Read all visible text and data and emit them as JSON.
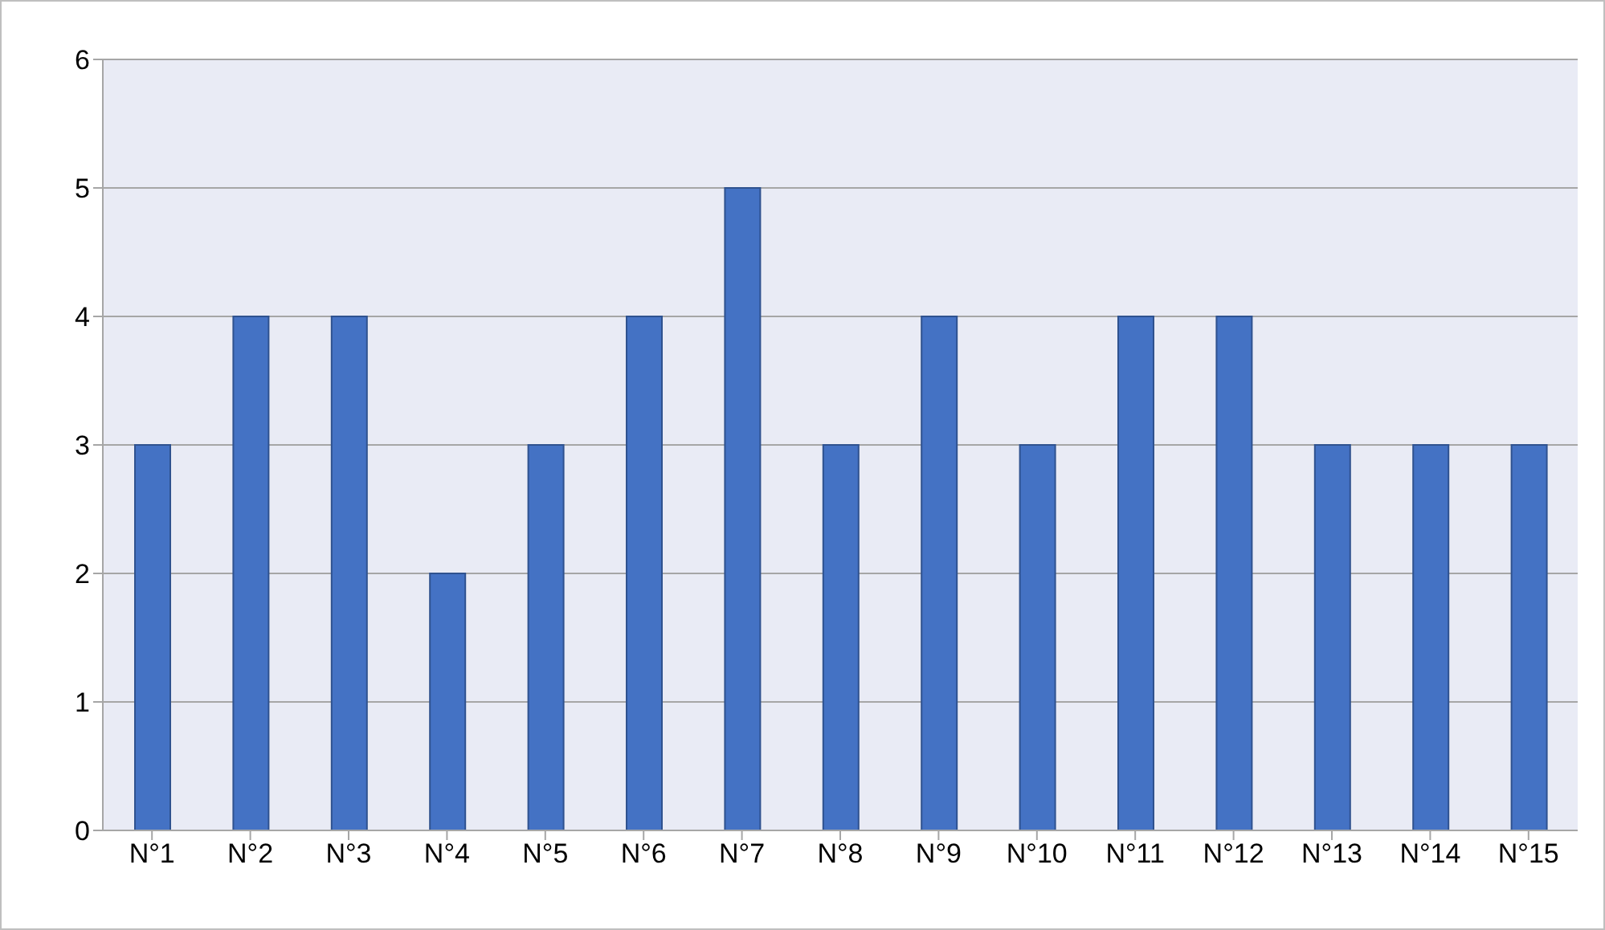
{
  "chart_data": {
    "type": "bar",
    "categories": [
      "N°1",
      "N°2",
      "N°3",
      "N°4",
      "N°5",
      "N°6",
      "N°7",
      "N°8",
      "N°9",
      "N°10",
      "N°11",
      "N°12",
      "N°13",
      "N°14",
      "N°15"
    ],
    "values": [
      3,
      4,
      4,
      2,
      3,
      4,
      5,
      3,
      4,
      3,
      4,
      4,
      3,
      3,
      3
    ],
    "color": "#4472c4",
    "ylim": [
      0,
      6
    ],
    "yticks": [
      0,
      1,
      2,
      3,
      4,
      5,
      6
    ],
    "grid": "y"
  }
}
